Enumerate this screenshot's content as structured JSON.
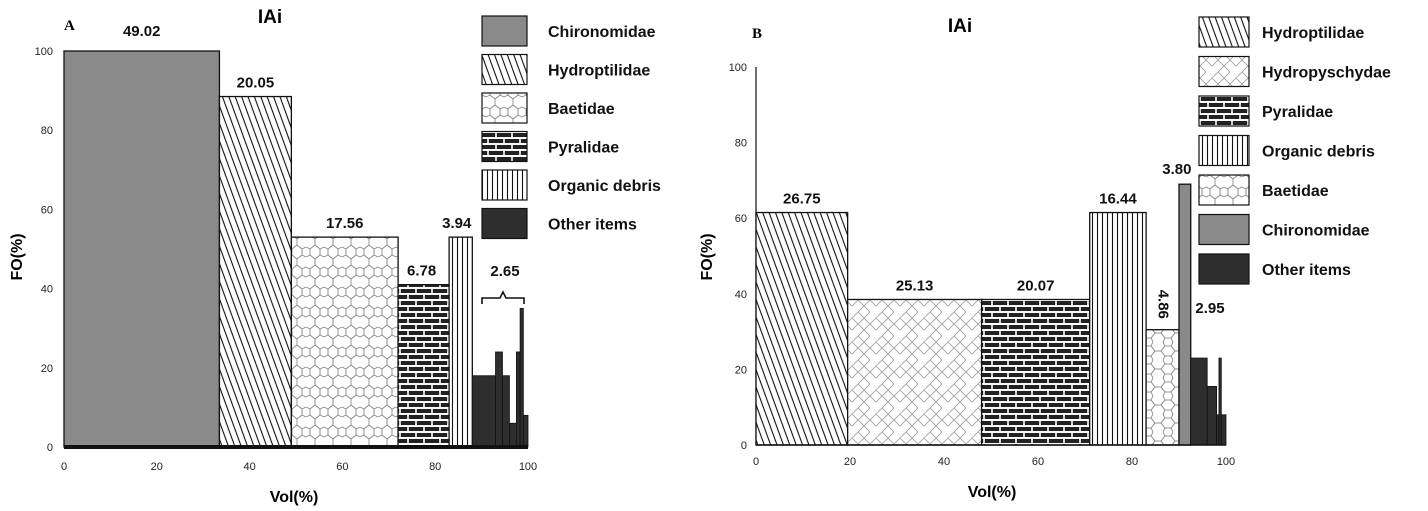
{
  "chart_data": [
    {
      "type": "bar",
      "variant": "costello-step",
      "panel": "A",
      "title": "IAi",
      "xlabel": "Vol(%)",
      "ylabel": "FO(%)",
      "xlim": [
        0,
        100
      ],
      "ylim": [
        0,
        100
      ],
      "xticks": [
        0,
        20,
        40,
        60,
        80,
        100
      ],
      "yticks": [
        0,
        20,
        40,
        60,
        80,
        100
      ],
      "legend_position": "right",
      "bars": [
        {
          "name": "Chironomidae",
          "x0": 0,
          "x1": 33.5,
          "fo": 100,
          "label": "49.02",
          "pattern": "gray"
        },
        {
          "name": "Hydroptilidae",
          "x0": 33.5,
          "x1": 49,
          "fo": 88.5,
          "label": "20.05",
          "pattern": "diag"
        },
        {
          "name": "Baetidae",
          "x0": 49,
          "x1": 72,
          "fo": 53,
          "label": "17.56",
          "pattern": "hex"
        },
        {
          "name": "Pyralidae",
          "x0": 72,
          "x1": 83,
          "fo": 41,
          "label": "6.78",
          "pattern": "brick"
        },
        {
          "name": "Organic debris",
          "x0": 83,
          "x1": 88,
          "fo": 53,
          "label": "3.94",
          "pattern": "vert"
        }
      ],
      "other_items": {
        "label": "2.65",
        "bars": [
          [
            88,
            93,
            18
          ],
          [
            93,
            94.5,
            24
          ],
          [
            94.5,
            96,
            18
          ],
          [
            96,
            97.5,
            6
          ],
          [
            97.5,
            98.3,
            24
          ],
          [
            98.3,
            99,
            35
          ],
          [
            99,
            100,
            8
          ]
        ]
      },
      "legend": [
        {
          "label": "Chironomidae",
          "pattern": "gray"
        },
        {
          "label": "Hydroptilidae",
          "pattern": "diag"
        },
        {
          "label": "Baetidae",
          "pattern": "hex"
        },
        {
          "label": "Pyralidae",
          "pattern": "brick"
        },
        {
          "label": "Organic debris",
          "pattern": "vert"
        },
        {
          "label": "Other items",
          "pattern": "dark"
        }
      ]
    },
    {
      "type": "bar",
      "variant": "costello-step",
      "panel": "B",
      "title": "IAi",
      "xlabel": "Vol(%)",
      "ylabel": "FO(%)",
      "xlim": [
        0,
        100
      ],
      "ylim": [
        0,
        100
      ],
      "xticks": [
        0,
        20,
        40,
        60,
        80,
        100
      ],
      "yticks": [
        0,
        20,
        40,
        60,
        80,
        100
      ],
      "legend_position": "right",
      "bars": [
        {
          "name": "Hydroptilidae",
          "x0": 0,
          "x1": 19.5,
          "fo": 61.5,
          "label": "26.75",
          "pattern": "diag"
        },
        {
          "name": "Hydropyschydae",
          "x0": 19.5,
          "x1": 48,
          "fo": 38.5,
          "label": "25.13",
          "pattern": "herring"
        },
        {
          "name": "Pyralidae",
          "x0": 48,
          "x1": 71,
          "fo": 38.5,
          "label": "20.07",
          "pattern": "brick"
        },
        {
          "name": "Organic debris",
          "x0": 71,
          "x1": 83,
          "fo": 61.5,
          "label": "16.44",
          "pattern": "vert"
        },
        {
          "name": "Baetidae",
          "x0": 83,
          "x1": 90,
          "fo": 30.5,
          "label": "4.86",
          "pattern": "hex",
          "rotated": true
        },
        {
          "name": "Chironomidae",
          "x0": 90,
          "x1": 92.5,
          "fo": 69,
          "label": "3.80",
          "pattern": "gray"
        }
      ],
      "other_items": {
        "label": "2.95",
        "bars": [
          [
            92.5,
            96,
            23
          ],
          [
            96,
            98,
            15.5
          ],
          [
            98,
            98.5,
            8
          ],
          [
            98.5,
            99,
            23
          ],
          [
            99,
            100,
            8
          ]
        ]
      },
      "legend": [
        {
          "label": "Hydroptilidae",
          "pattern": "diag"
        },
        {
          "label": "Hydropyschydae",
          "pattern": "herring"
        },
        {
          "label": "Pyralidae",
          "pattern": "brick"
        },
        {
          "label": "Organic debris",
          "pattern": "vert"
        },
        {
          "label": "Baetidae",
          "pattern": "hex"
        },
        {
          "label": "Chironomidae",
          "pattern": "gray"
        },
        {
          "label": "Other items",
          "pattern": "dark"
        }
      ]
    }
  ]
}
